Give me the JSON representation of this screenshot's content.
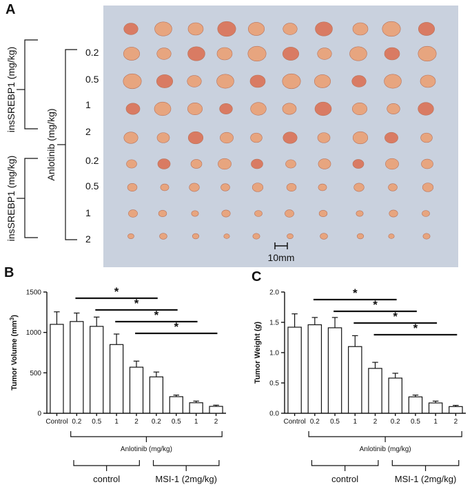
{
  "panel_a": {
    "letter": "A",
    "label_insrebp1": "insSREBP1 (mg/kg)",
    "label_anlotinib": "Anlotinib (mg/kg)",
    "row_doses": [
      "0.2",
      "0.5",
      "1",
      "2",
      "0.2",
      "0.5",
      "1",
      "2"
    ],
    "scale_bar": "10mm",
    "colors": {
      "photo_bg": "#c9d1de",
      "tumor": "#e7a57f"
    }
  },
  "chart_data": [
    {
      "type": "bar",
      "panel": "B",
      "title": "",
      "ylabel": "Tumor Volume (mm³)",
      "ylabel_main": "Tumor Volume (mm",
      "ylabel_sup": "3",
      "ylabel_close": ")",
      "ylim": [
        0,
        1500
      ],
      "yticks": [
        "0",
        "500",
        "1000",
        "1500"
      ],
      "ytick_values": [
        0,
        500,
        1000,
        1500
      ],
      "categories": [
        "Control",
        "0.2",
        "0.5",
        "1",
        "2",
        "0.2",
        "0.5",
        "1",
        "2"
      ],
      "values": [
        1100,
        1135,
        1075,
        850,
        570,
        450,
        205,
        130,
        85
      ],
      "errors": [
        155,
        105,
        115,
        130,
        75,
        60,
        20,
        20,
        15
      ],
      "significance": [
        {
          "from": 1,
          "to": 5,
          "label": "*"
        },
        {
          "from": 2,
          "to": 6,
          "label": "*"
        },
        {
          "from": 3,
          "to": 7,
          "label": "*"
        },
        {
          "from": 4,
          "to": 8,
          "label": "*"
        }
      ],
      "group_label": "Anlotinib (mg/kg)",
      "subgroups": [
        "control",
        "MSI-1 (2mg/kg)"
      ]
    },
    {
      "type": "bar",
      "panel": "C",
      "title": "",
      "ylabel": "Tumor Weight (g)",
      "ylabel_main": "Tumor Weight (",
      "ylabel_unit": "g",
      "ylabel_close": ")",
      "ylim": [
        0,
        2.0
      ],
      "yticks": [
        "0.0",
        "0.5",
        "1.0",
        "1.5",
        "2.0"
      ],
      "ytick_values": [
        0,
        0.5,
        1.0,
        1.5,
        2.0
      ],
      "categories": [
        "Control",
        "0.2",
        "0.5",
        "1",
        "2",
        "0.2",
        "0.5",
        "1",
        "2"
      ],
      "values": [
        1.42,
        1.46,
        1.41,
        1.1,
        0.74,
        0.58,
        0.27,
        0.17,
        0.11
      ],
      "errors": [
        0.22,
        0.12,
        0.17,
        0.18,
        0.1,
        0.08,
        0.03,
        0.03,
        0.02
      ],
      "significance": [
        {
          "from": 1,
          "to": 5,
          "label": "*"
        },
        {
          "from": 2,
          "to": 6,
          "label": "*"
        },
        {
          "from": 3,
          "to": 7,
          "label": "*"
        },
        {
          "from": 4,
          "to": 8,
          "label": "*"
        }
      ],
      "group_label": "Anlotinib (mg/kg)",
      "subgroups": [
        "control",
        "MSI-1 (2mg/kg)"
      ]
    }
  ]
}
